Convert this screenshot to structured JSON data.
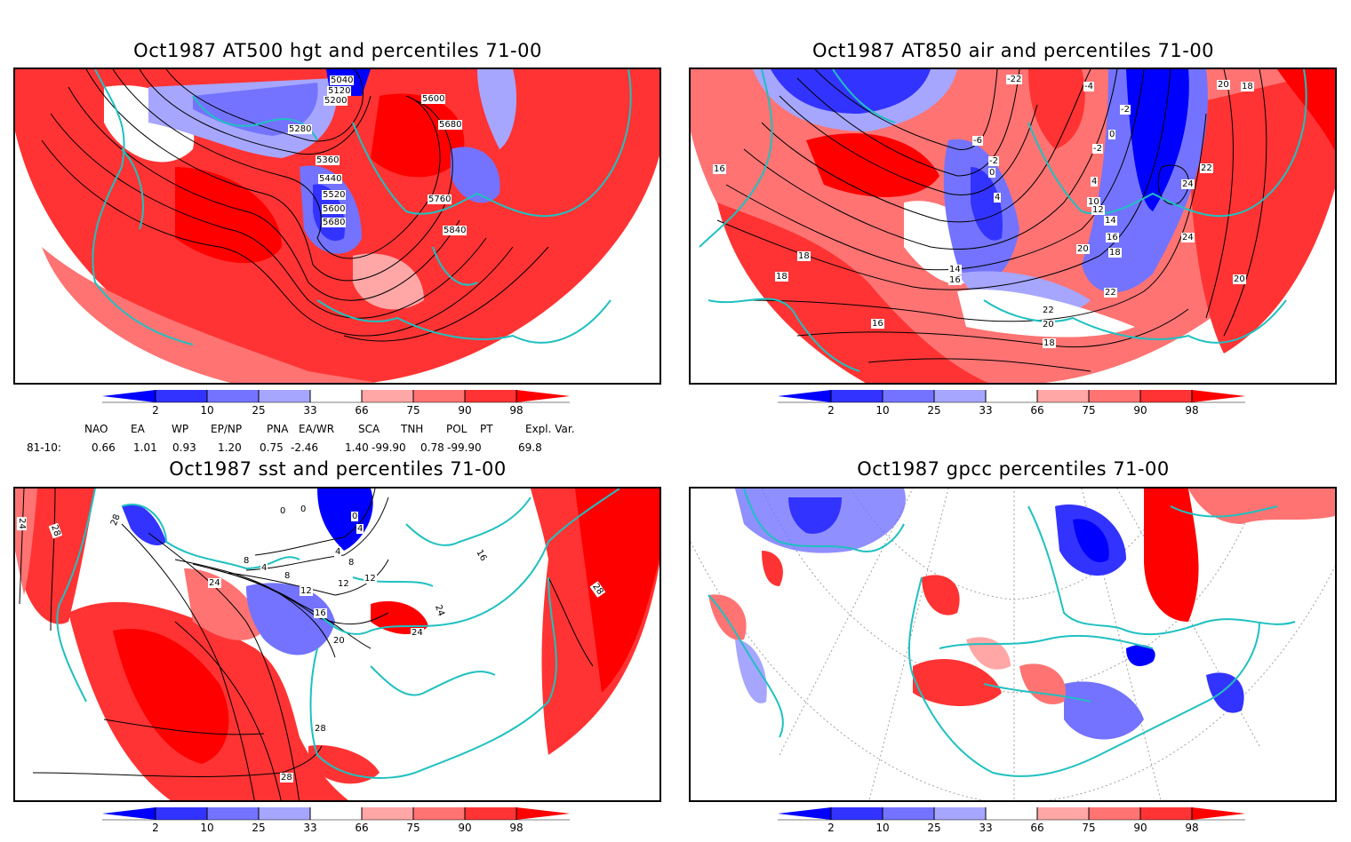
{
  "panels": [
    {
      "id": "hgt500",
      "title": "Oct1987 AT500 hgt and percentiles 71-00",
      "contour_labels": [
        "5040",
        "5120",
        "5200",
        "5280",
        "5360",
        "5440",
        "5520",
        "5600",
        "5680",
        "5600",
        "5680",
        "5760",
        "5840"
      ]
    },
    {
      "id": "air850",
      "title": "Oct1987 AT850 air and percentiles 71-00",
      "contour_labels": [
        "-22",
        "-4",
        "-2",
        "0",
        "-2",
        "-6",
        "-2",
        "0",
        "4",
        "4",
        "10",
        "12",
        "14",
        "16",
        "18",
        "20",
        "22",
        "22",
        "24",
        "24",
        "20",
        "18",
        "16",
        "18",
        "18",
        "14",
        "16",
        "22",
        "20",
        "18",
        "16",
        "20"
      ]
    },
    {
      "id": "sst",
      "title": "Oct1987 sst and percentiles 71-00",
      "contour_labels": [
        "24",
        "28",
        "28",
        "0",
        "0",
        "0",
        "4",
        "4",
        "8",
        "4",
        "8",
        "8",
        "24",
        "12",
        "12",
        "12",
        "16",
        "20",
        "24",
        "24",
        "28",
        "16",
        "28",
        "28"
      ]
    },
    {
      "id": "gpcc",
      "title": "Oct1987 gpcc percentiles 71-00",
      "contour_labels": []
    }
  ],
  "colorbar": {
    "ticks": [
      "2",
      "10",
      "25",
      "33",
      "66",
      "75",
      "90",
      "98"
    ],
    "colors": [
      "#0000ff",
      "#3333ff",
      "#7373ff",
      "#a6a6ff",
      "#ffffff",
      "#ffa6a6",
      "#ff7373",
      "#ff3333",
      "#ff0000"
    ]
  },
  "indices": {
    "headers": [
      "NAO",
      "EA",
      "WP",
      "EP/NP",
      "PNA",
      "EA/WR",
      "SCA",
      "TNH",
      "POL",
      "PT",
      "Expl. Var."
    ],
    "row_label": "81-10:",
    "values": [
      "0.66",
      "1.01",
      "0.93",
      "1.20",
      "0.75",
      "-2.46",
      "1.40",
      "-99.90",
      "0.78",
      "-99.90",
      "69.8"
    ]
  },
  "colors": {
    "coast": "#20c0c0",
    "contour": "#000000"
  }
}
